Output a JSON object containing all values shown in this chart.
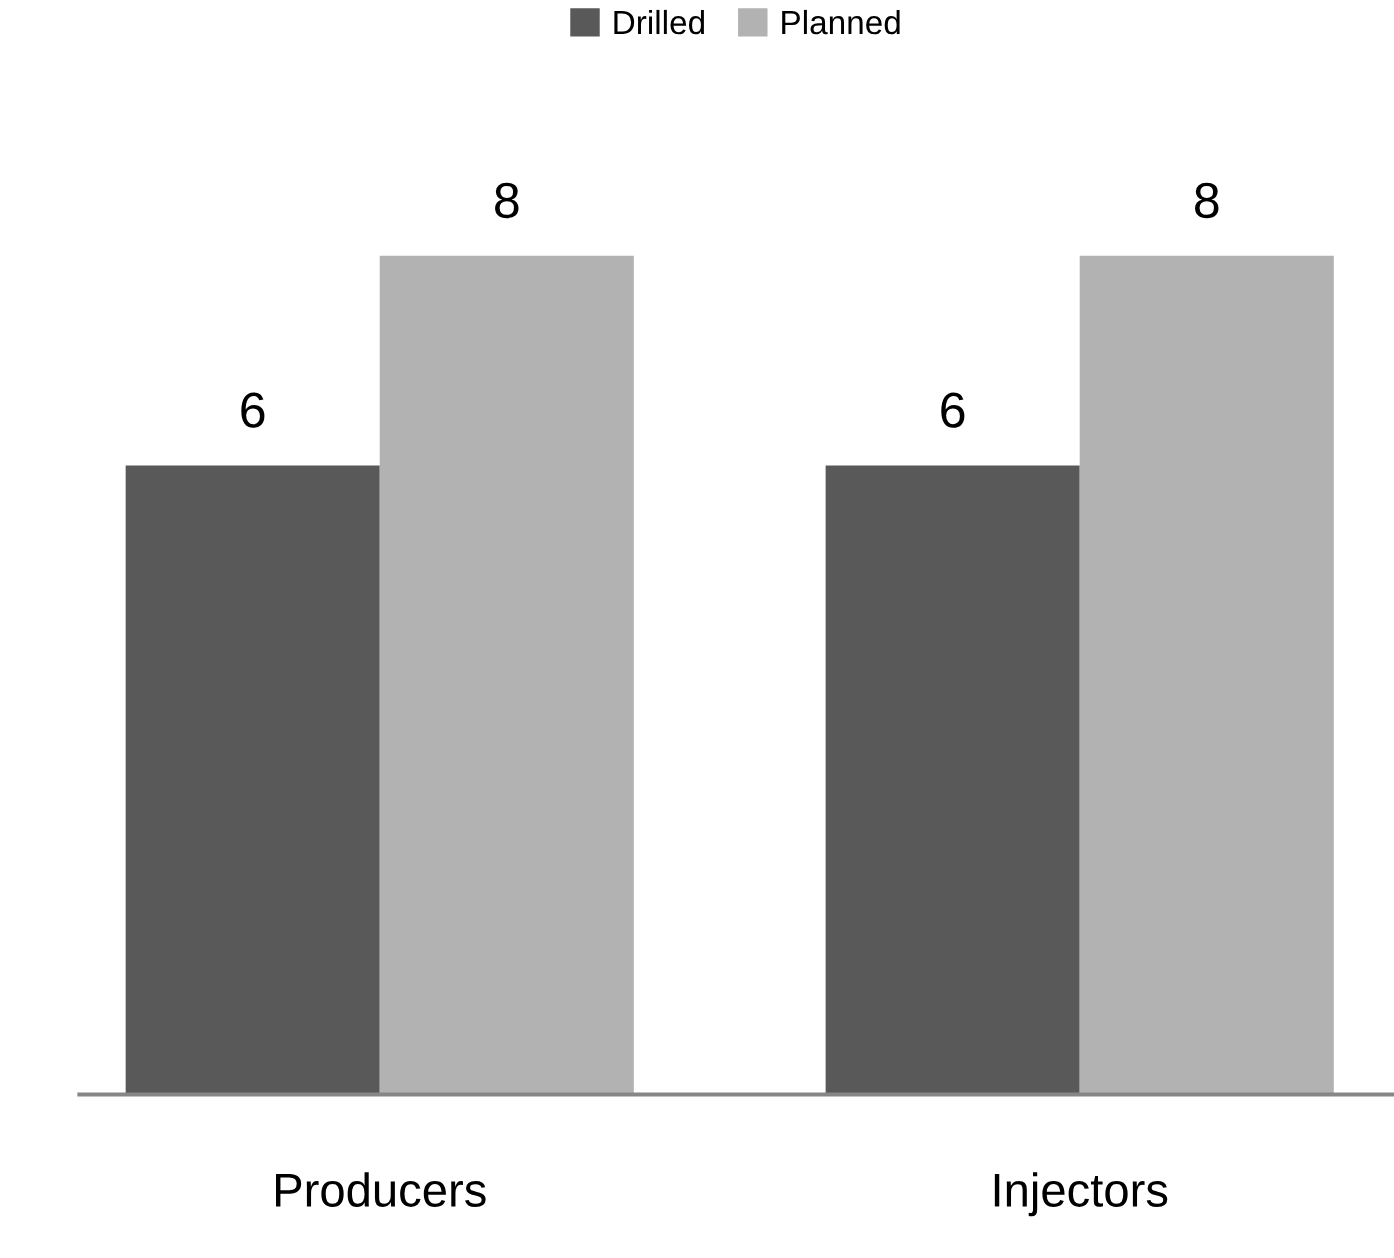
{
  "chart_data": {
    "type": "bar",
    "categories": [
      "Producers",
      "Injectors"
    ],
    "series": [
      {
        "name": "Drilled",
        "color": "#595959",
        "values": [
          6,
          6
        ]
      },
      {
        "name": "Planned",
        "color": "#b2b2b2",
        "values": [
          8,
          8
        ]
      }
    ],
    "data_labels": true,
    "legend": "top",
    "grid": false
  }
}
